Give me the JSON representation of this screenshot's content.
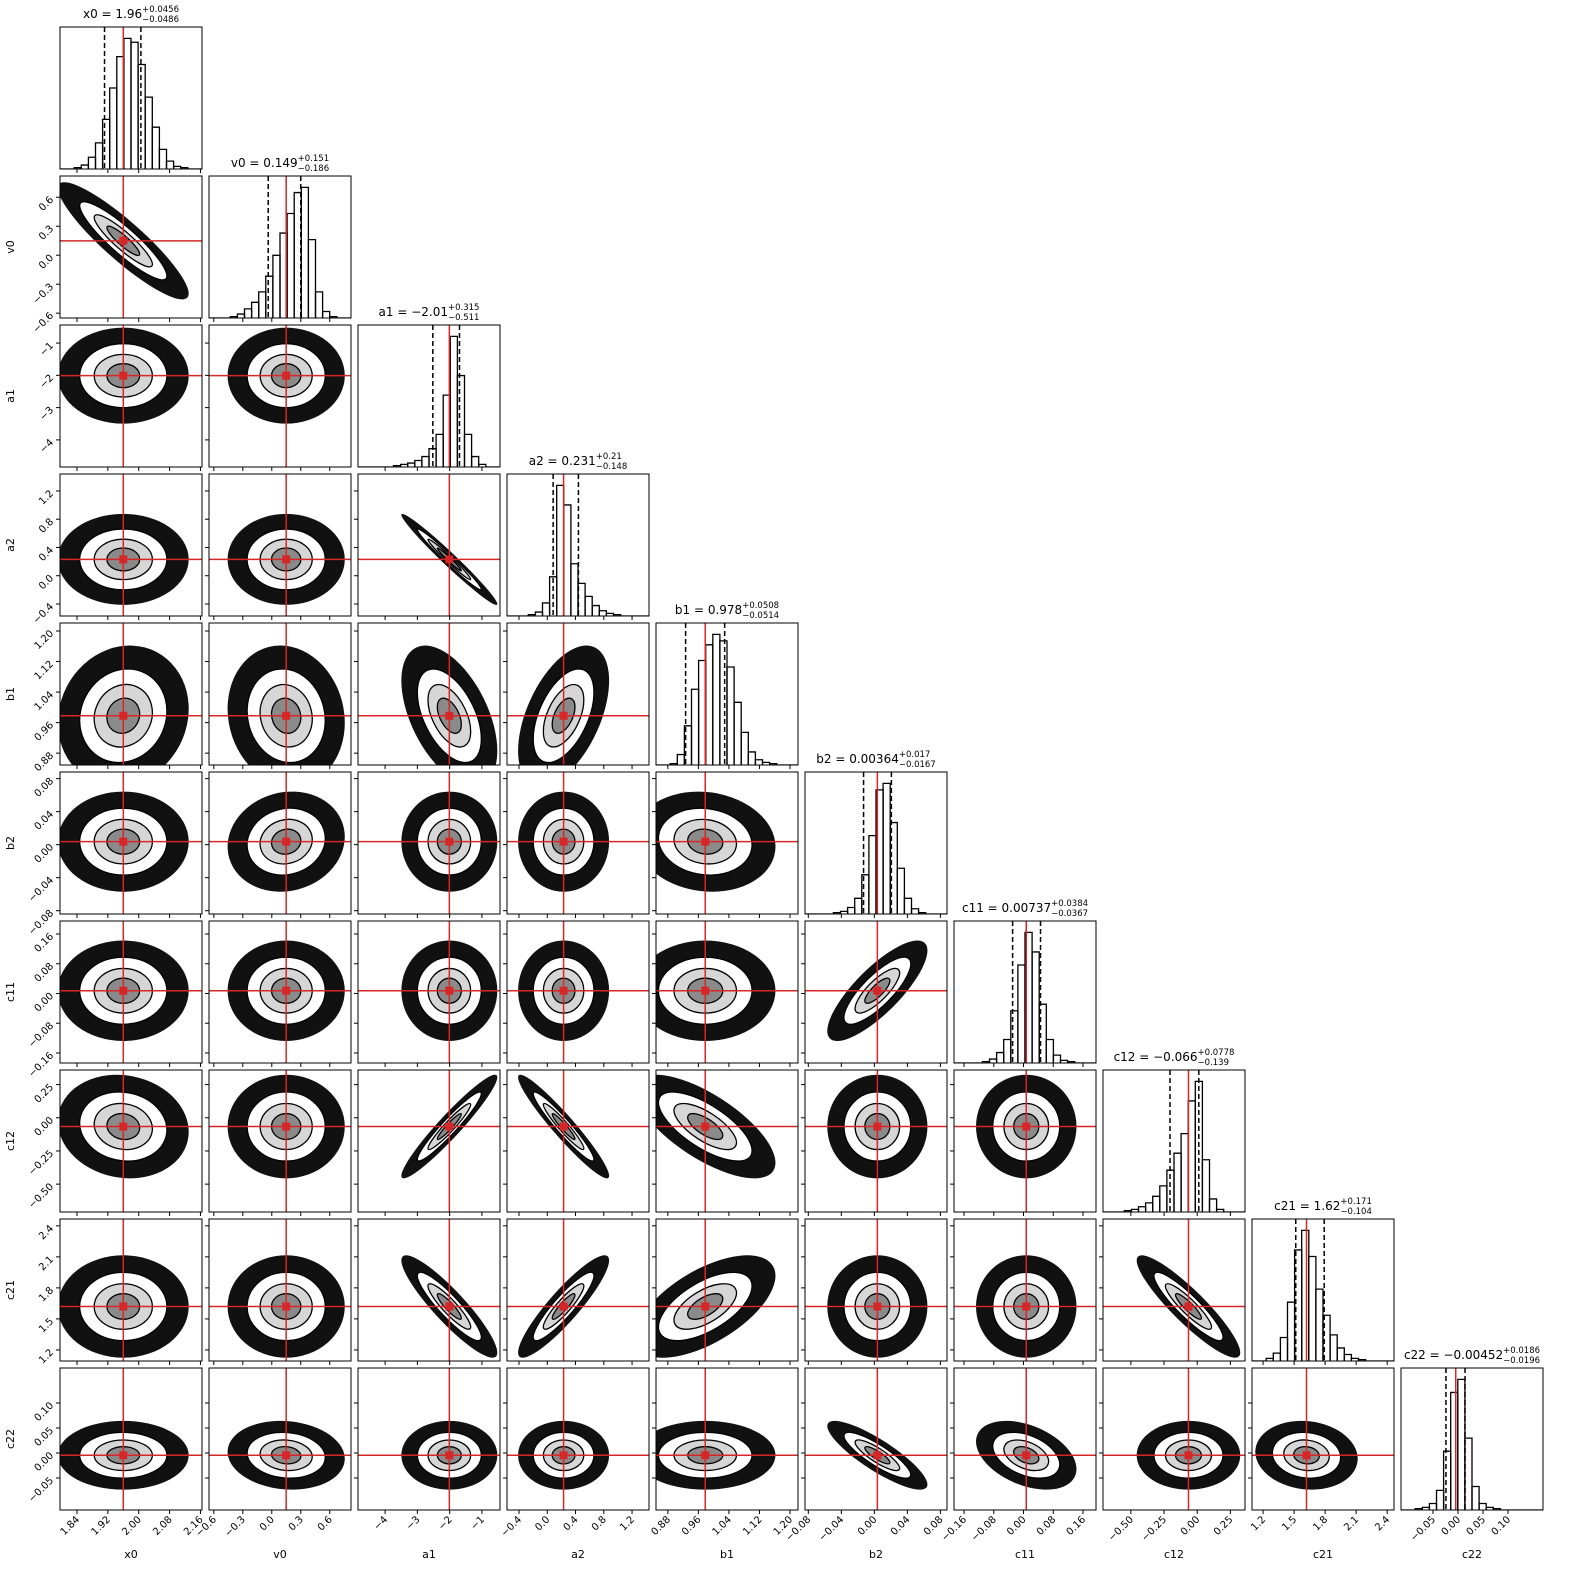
{
  "chart_data": {
    "type": "corner",
    "truth_color": "#d62728",
    "hist_color": "#000000",
    "params": [
      {
        "name": "x0",
        "title": "x0 = 1.96",
        "median": 1.96,
        "plus": 0.0456,
        "plus_label": "+0.0456",
        "minus": 0.0486,
        "minus_label": "−0.0486",
        "lim": [
          1.796,
          2.164
        ],
        "ticks": [
          1.84,
          1.92,
          {
            "value": 2.0,
            "label": "2.00"
          },
          2.08,
          2.16
        ],
        "hist": [
          0,
          0,
          1,
          3,
          9,
          20,
          38,
          62,
          86,
          100,
          97,
          80,
          55,
          32,
          15,
          6,
          2,
          1,
          0,
          0
        ]
      },
      {
        "name": "v0",
        "title": "v0 = 0.149",
        "median": 0.149,
        "plus": 0.151,
        "plus_label": "+0.151",
        "minus": 0.186,
        "minus_label": "−0.186",
        "lim": [
          -0.65,
          0.82
        ],
        "ticks": [
          {
            "value": -0.6,
            "label": "−0.6"
          },
          {
            "value": -0.3,
            "label": "−0.3"
          },
          {
            "value": 0,
            "label": "0.0"
          },
          0.3,
          0.6
        ],
        "hist": [
          0,
          0,
          0,
          1,
          3,
          7,
          12,
          20,
          32,
          48,
          65,
          80,
          96,
          100,
          60,
          20,
          5,
          1,
          0,
          0
        ]
      },
      {
        "name": "a1",
        "title": "a1 = −2.01",
        "median": -2.01,
        "plus": 0.315,
        "plus_label": "+0.315",
        "minus": 0.511,
        "minus_label": "−0.511",
        "lim": [
          -4.84,
          -0.44
        ],
        "ticks": [
          {
            "value": -4,
            "label": "−4"
          },
          {
            "value": -3,
            "label": "−3"
          },
          {
            "value": -2,
            "label": "−2"
          },
          {
            "value": -1,
            "label": "−1"
          }
        ],
        "hist": [
          0,
          0,
          0,
          0,
          0,
          1,
          2,
          3,
          5,
          8,
          14,
          25,
          55,
          100,
          70,
          25,
          8,
          2,
          0,
          0
        ]
      },
      {
        "name": "a2",
        "title": "a2 = 0.231",
        "median": 0.231,
        "plus": 0.21,
        "plus_label": "+0.21",
        "minus": 0.148,
        "minus_label": "−0.148",
        "lim": [
          -0.57,
          1.44
        ],
        "ticks": [
          {
            "value": -0.4,
            "label": "−0.4"
          },
          {
            "value": 0,
            "label": "0.0"
          },
          0.4,
          0.8,
          1.2
        ],
        "hist": [
          0,
          0,
          0,
          1,
          3,
          10,
          30,
          100,
          85,
          40,
          25,
          15,
          8,
          4,
          2,
          1,
          0,
          0,
          0,
          0
        ]
      },
      {
        "name": "b1",
        "title": "b1 = 0.978",
        "median": 0.978,
        "plus": 0.0508,
        "plus_label": "+0.0508",
        "minus": 0.0514,
        "minus_label": "−0.0514",
        "lim": [
          0.849,
          1.221
        ],
        "ticks": [
          0.88,
          0.96,
          1.04,
          1.12,
          {
            "value": 1.2,
            "label": "1.20"
          }
        ],
        "hist": [
          0,
          0,
          1,
          8,
          30,
          58,
          80,
          92,
          100,
          95,
          75,
          48,
          25,
          10,
          4,
          2,
          1,
          0,
          0,
          0
        ]
      },
      {
        "name": "b2",
        "title": "b2 = 0.00364",
        "median": 0.00364,
        "plus": 0.017,
        "plus_label": "+0.017",
        "minus": 0.0167,
        "minus_label": "−0.0167",
        "lim": [
          -0.084,
          0.088
        ],
        "ticks": [
          {
            "value": -0.08,
            "label": "−0.08"
          },
          {
            "value": -0.04,
            "label": "−0.04"
          },
          {
            "value": 0,
            "label": "0.00"
          },
          0.04,
          0.08
        ],
        "hist": [
          0,
          0,
          0,
          0,
          1,
          2,
          5,
          12,
          30,
          60,
          95,
          100,
          70,
          35,
          12,
          4,
          1,
          0,
          0,
          0
        ]
      },
      {
        "name": "c11",
        "title": "c11 = 0.00737",
        "median": 0.00737,
        "plus": 0.0384,
        "plus_label": "+0.0384",
        "minus": 0.0367,
        "minus_label": "−0.0367",
        "lim": [
          -0.187,
          0.195
        ],
        "ticks": [
          {
            "value": -0.16,
            "label": "−0.16"
          },
          {
            "value": -0.08,
            "label": "−0.08"
          },
          {
            "value": 0,
            "label": "0.00"
          },
          0.08,
          0.16
        ],
        "hist": [
          0,
          0,
          0,
          0,
          1,
          3,
          8,
          18,
          40,
          75,
          100,
          85,
          45,
          18,
          6,
          2,
          1,
          0,
          0,
          0
        ]
      },
      {
        "name": "c12",
        "title": "c12 = −0.066",
        "median": -0.066,
        "plus": 0.0778,
        "plus_label": "+0.0778",
        "minus": 0.139,
        "minus_label": "−0.139",
        "lim": [
          -0.71,
          0.36
        ],
        "ticks": [
          {
            "value": -0.5,
            "label": "−0.50"
          },
          {
            "value": -0.25,
            "label": "−0.25"
          },
          {
            "value": 0,
            "label": "0.00"
          },
          0.25
        ],
        "hist": [
          0,
          0,
          0,
          1,
          2,
          4,
          7,
          12,
          20,
          32,
          45,
          60,
          85,
          100,
          40,
          10,
          2,
          0,
          0,
          0
        ]
      },
      {
        "name": "c21",
        "title": "c21 = 1.62",
        "median": 1.62,
        "plus": 0.171,
        "plus_label": "+0.171",
        "minus": 0.104,
        "minus_label": "−0.104",
        "lim": [
          1.093,
          2.466
        ],
        "ticks": [
          1.2,
          1.5,
          1.8,
          2.1,
          2.4
        ],
        "hist": [
          0,
          0,
          2,
          6,
          18,
          45,
          85,
          100,
          80,
          55,
          35,
          20,
          10,
          5,
          2,
          1,
          0,
          0,
          0,
          0
        ]
      },
      {
        "name": "c22",
        "title": "c22 = −0.00452",
        "median": -0.00452,
        "plus": 0.0186,
        "plus_label": "+0.0186",
        "minus": 0.0196,
        "minus_label": "−0.0196",
        "lim": [
          -0.114,
          0.17
        ],
        "ticks": [
          {
            "value": -0.05,
            "label": "−0.05"
          },
          {
            "value": 0,
            "label": "0.00"
          },
          0.05,
          {
            "value": 0.1,
            "label": "0.10"
          }
        ],
        "hist": [
          0,
          0,
          1,
          2,
          5,
          15,
          45,
          90,
          100,
          55,
          18,
          5,
          2,
          1,
          0,
          0,
          0,
          0,
          0,
          0
        ]
      }
    ],
    "correlations": [
      [
        -0.9
      ],
      [
        0,
        0
      ],
      [
        0,
        0,
        -0.98
      ],
      [
        0.1,
        -0.1,
        -0.5,
        0.5
      ],
      [
        0,
        0.1,
        0,
        0,
        -0.1
      ],
      [
        0,
        0,
        0,
        0,
        0,
        0.8
      ],
      [
        -0.1,
        0,
        0.95,
        -0.95,
        -0.7,
        0,
        0
      ],
      [
        0,
        0,
        -0.9,
        0.9,
        0.6,
        0,
        0,
        -0.9
      ],
      [
        0,
        -0.1,
        0,
        0,
        0,
        -0.85,
        -0.4,
        0,
        -0.1
      ]
    ]
  }
}
